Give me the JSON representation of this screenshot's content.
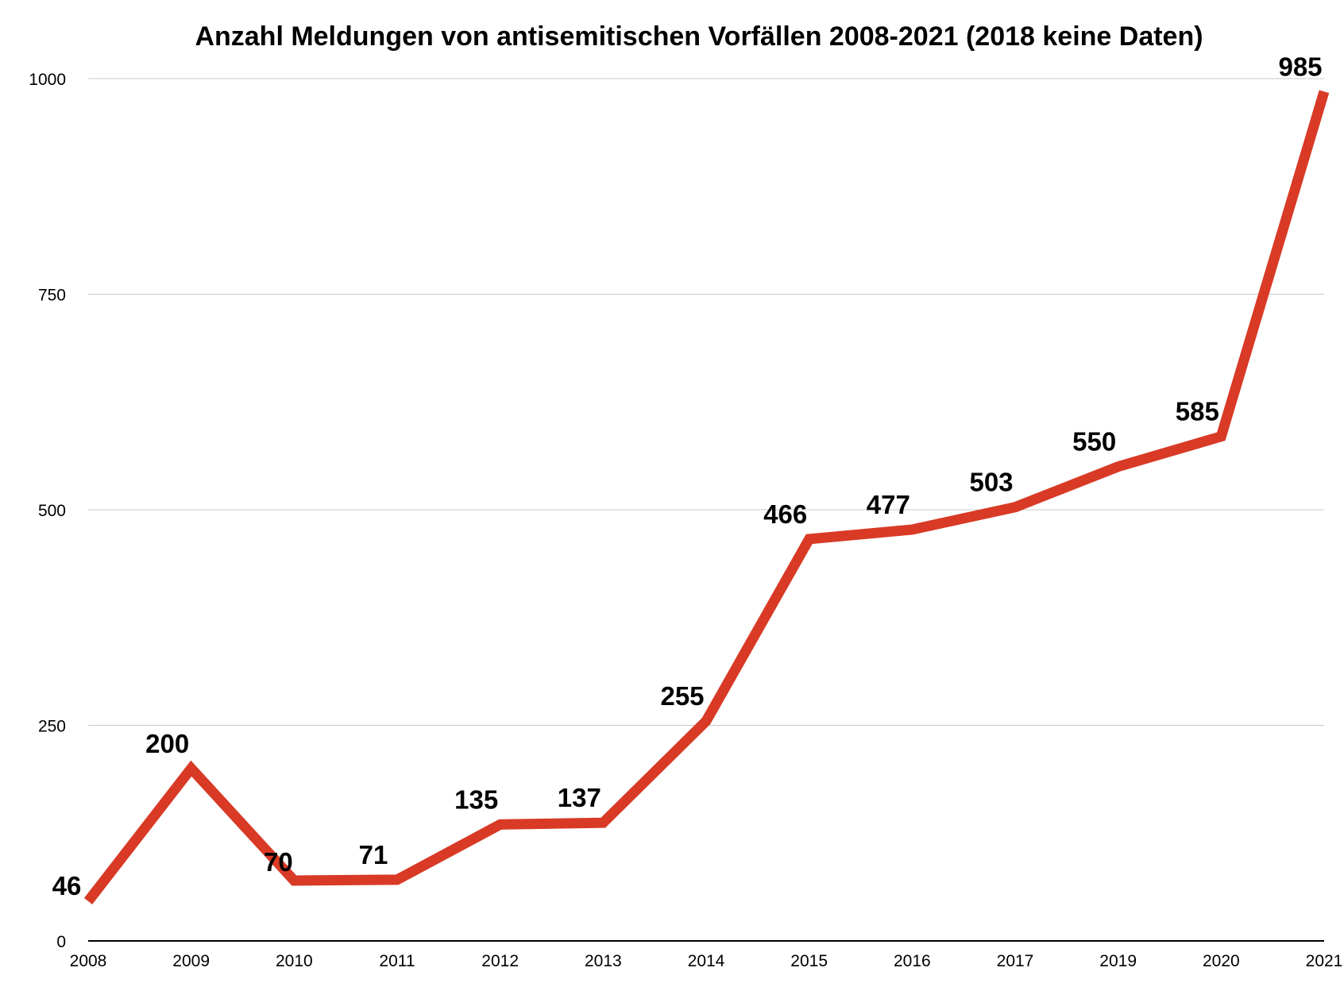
{
  "chart_data": {
    "type": "line",
    "title": "Anzahl Meldungen von antisemitischen Vorfällen 2008-2021 (2018 keine Daten)",
    "xlabel": "",
    "ylabel": "",
    "categories": [
      "2008",
      "2009",
      "2010",
      "2011",
      "2012",
      "2013",
      "2014",
      "2015",
      "2016",
      "2017",
      "2019",
      "2020",
      "2021"
    ],
    "series": [
      {
        "values": [
          46,
          200,
          70,
          71,
          135,
          137,
          255,
          466,
          477,
          503,
          550,
          585,
          985
        ],
        "color": "#d83a26"
      }
    ],
    "data_labels": [
      "46",
      "200",
      "70",
      "71",
      "135",
      "137",
      "255",
      "466",
      "477",
      "503",
      "550",
      "585",
      "985"
    ],
    "ylim": [
      0,
      1000
    ],
    "yticks": [
      0,
      250,
      500,
      750,
      1000
    ],
    "ytick_labels": [
      "0",
      "250",
      "500",
      "750",
      "1000"
    ],
    "grid": true,
    "legend": "none"
  }
}
